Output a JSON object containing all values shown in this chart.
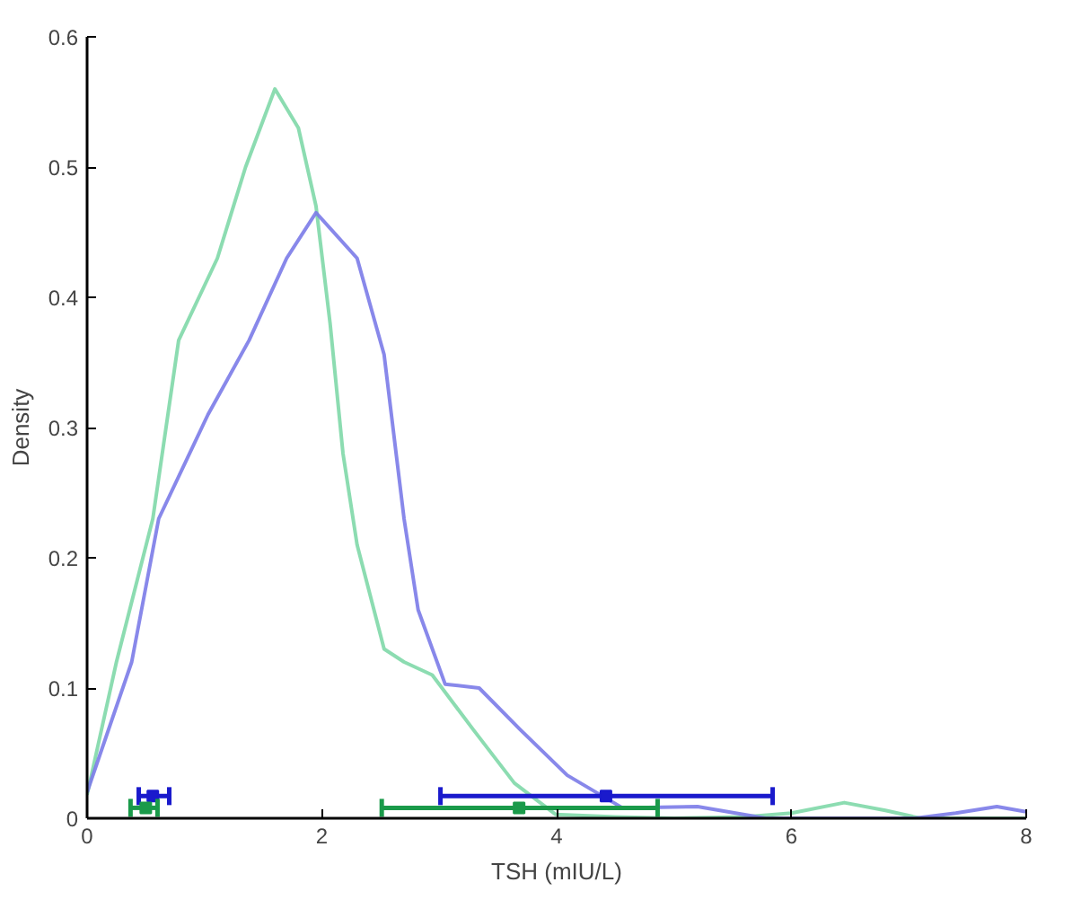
{
  "chart_data": {
    "type": "line",
    "xlabel": "TSH (mIU/L)",
    "ylabel": "Density",
    "xlim": [
      0,
      8
    ],
    "xticks": [
      0,
      2,
      4,
      6,
      8
    ],
    "ylim": [
      0,
      0.6
    ],
    "yticks": [
      0,
      0.1,
      0.2,
      0.3,
      0.4,
      0.5,
      0.6
    ],
    "grid": false,
    "line_style": "solid",
    "series": [
      {
        "color": "#7fd8a8",
        "x": [
          0,
          0.25,
          0.56,
          0.78,
          1.11,
          1.35,
          1.6,
          1.8,
          1.95,
          2.07,
          2.18,
          2.3,
          2.53,
          2.7,
          2.94,
          3.29,
          3.64,
          3.99,
          4.5,
          5.0,
          5.6,
          6.0,
          6.45,
          6.8,
          7.1,
          7.5,
          8
        ],
        "values": [
          0.018,
          0.12,
          0.23,
          0.367,
          0.43,
          0.5,
          0.56,
          0.53,
          0.47,
          0.38,
          0.28,
          0.21,
          0.13,
          0.12,
          0.11,
          0.068,
          0.027,
          0.003,
          0.001,
          0.0,
          0.001,
          0.004,
          0.012,
          0.006,
          0.0,
          0.0,
          0.0
        ]
      },
      {
        "color": "#7b7be8",
        "x": [
          0,
          0.38,
          0.61,
          1.03,
          1.38,
          1.7,
          1.95,
          2.3,
          2.53,
          2.7,
          2.82,
          3.05,
          3.34,
          3.69,
          4.09,
          4.56,
          5.2,
          5.78,
          6.5,
          7.05,
          7.4,
          7.75,
          8
        ],
        "values": [
          0.02,
          0.12,
          0.23,
          0.31,
          0.367,
          0.43,
          0.465,
          0.43,
          0.356,
          0.23,
          0.16,
          0.103,
          0.1,
          0.068,
          0.033,
          0.008,
          0.009,
          0.0,
          0.0,
          0.0,
          0.004,
          0.009,
          0.005
        ]
      },
      {
        "type": "scatter",
        "color": "#1a1acc",
        "x": [
          0.56,
          4.42
        ],
        "values": [
          0.017,
          0.017
        ],
        "marker": "square",
        "xerrors": [
          [
            0.44,
            0.7
          ],
          [
            3.01,
            5.84
          ]
        ]
      },
      {
        "type": "scatter",
        "color": "#1a9a4a",
        "x": [
          0.5,
          3.68
        ],
        "values": [
          0.008,
          0.008
        ],
        "marker": "square",
        "xerrors": [
          [
            0.37,
            0.6
          ],
          [
            2.51,
            4.86
          ]
        ]
      }
    ]
  }
}
